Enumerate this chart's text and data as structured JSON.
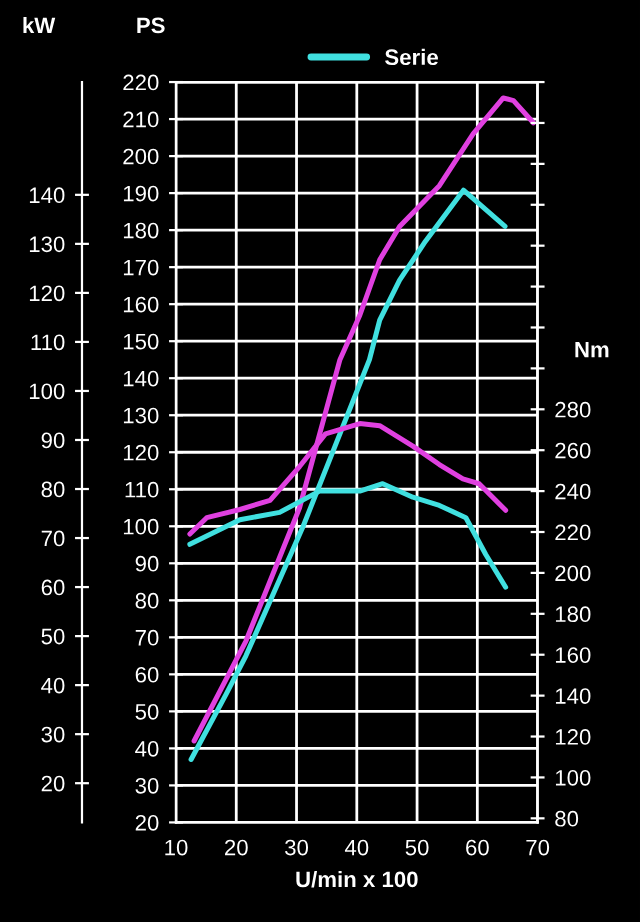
{
  "chart_data": {
    "type": "line",
    "xlabel": "U/min x 100",
    "ylabel": "PS",
    "y2label": "Nm",
    "y3label": "kW",
    "xlim": [
      10,
      70
    ],
    "xticks": [
      10,
      20,
      30,
      40,
      50,
      60,
      70
    ],
    "ylim": [
      20,
      220
    ],
    "yticks": [
      20,
      30,
      40,
      50,
      60,
      70,
      80,
      90,
      100,
      110,
      120,
      130,
      140,
      150,
      160,
      170,
      180,
      190,
      200,
      210,
      220
    ],
    "y2lim": [
      78,
      440
    ],
    "y2ticks": [
      80,
      100,
      120,
      140,
      160,
      180,
      200,
      220,
      240,
      260,
      280,
      {
        "value": 300,
        "label": null
      },
      {
        "value": 320,
        "label": null
      },
      {
        "value": 340,
        "label": null
      },
      {
        "value": 360,
        "label": null
      },
      {
        "value": 380,
        "label": null
      },
      {
        "value": 400,
        "label": null
      },
      {
        "value": 420,
        "label": null
      },
      {
        "value": 440,
        "label": null
      }
    ],
    "y3lim": [
      12,
      163
    ],
    "y3ticks": [
      20,
      30,
      40,
      50,
      60,
      70,
      80,
      90,
      100,
      110,
      120,
      130,
      140
    ],
    "grid": true,
    "legend": "top",
    "marker": "none",
    "line_style": "solid",
    "series": [
      {
        "color": "#e040e0",
        "x": [
          13,
          21.6,
          30.5,
          37.2,
          40.5,
          43.8,
          47.1,
          53.7,
          59.3,
          64.3,
          66,
          69.3
        ],
        "values": [
          42,
          69,
          105,
          145,
          157,
          172,
          181,
          192,
          206,
          215.7,
          215,
          209
        ]
      },
      {
        "name": "Serie",
        "color": "#40e0e0",
        "x": [
          12.5,
          18.3,
          21.6,
          31.1,
          42.1,
          43.8,
          47.1,
          51.4,
          57.7,
          64.6
        ],
        "values": [
          37,
          54.6,
          65,
          100,
          145,
          155.7,
          166.5,
          177,
          190.8,
          181
        ]
      },
      {
        "color": "#e040e0",
        "axis": "y2",
        "x": [
          12.3,
          15.1,
          20.6,
          25.6,
          30.5,
          34.8,
          40.5,
          43.8,
          49.3,
          53.7,
          57.6,
          60.3,
          64.7
        ],
        "values": [
          219,
          227,
          231,
          235.5,
          252,
          268,
          273,
          272,
          262,
          253,
          246,
          243.6,
          230.6
        ]
      },
      {
        "color": "#40e0e0",
        "axis": "y2",
        "x": [
          12.3,
          20.6,
          27.2,
          33.8,
          40.5,
          44.3,
          49.3,
          53.7,
          58.1,
          61.4,
          64.7
        ],
        "values": [
          214,
          226,
          229.6,
          240,
          240,
          243.6,
          237,
          233,
          227,
          209,
          193
        ]
      }
    ]
  }
}
